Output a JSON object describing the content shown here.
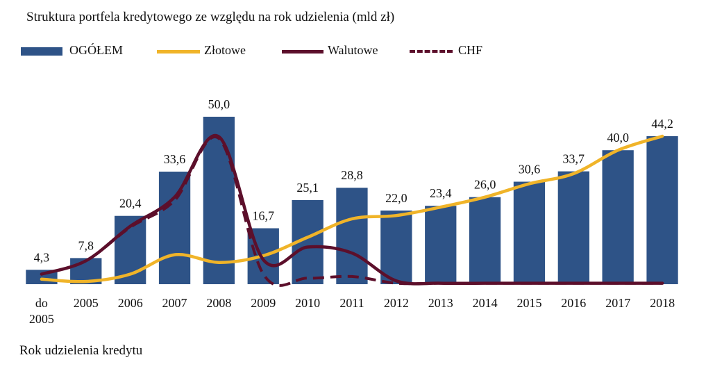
{
  "chart_data": {
    "type": "bar",
    "title": "Struktura portfela kredytowego ze względu na rok udzielenia  (mld zł)",
    "xlabel": "Rok udzielenia kredytu",
    "ylabel": "",
    "categories": [
      "do 2005",
      "2005",
      "2006",
      "2007",
      "2008",
      "2009",
      "2010",
      "2011",
      "2012",
      "2013",
      "2014",
      "2015",
      "2016",
      "2017",
      "2018"
    ],
    "category_lines": [
      [
        "do",
        "2005"
      ],
      [
        "2005"
      ],
      [
        "2006"
      ],
      [
        "2007"
      ],
      [
        "2008"
      ],
      [
        "2009"
      ],
      [
        "2010"
      ],
      [
        "2011"
      ],
      [
        "2012"
      ],
      [
        "2013"
      ],
      [
        "2014"
      ],
      [
        "2015"
      ],
      [
        "2016"
      ],
      [
        "2017"
      ],
      [
        "2018"
      ]
    ],
    "ylim": [
      0,
      55
    ],
    "grid": false,
    "legend_position": "top-left",
    "series": [
      {
        "name": "OGÓŁEM",
        "kind": "bar",
        "color": "#2e5387",
        "values": [
          4.3,
          7.8,
          20.4,
          33.6,
          50.0,
          16.7,
          25.1,
          28.8,
          22.0,
          23.4,
          26.0,
          30.6,
          33.7,
          40.0,
          44.2
        ],
        "data_labels": [
          "4,3",
          "7,8",
          "20,4",
          "33,6",
          "50,0",
          "16,7",
          "25,1",
          "28,8",
          "22,0",
          "23,4",
          "26,0",
          "30,6",
          "33,7",
          "40,0",
          "44,2"
        ]
      },
      {
        "name": "Złotowe",
        "kind": "line",
        "color": "#f0b429",
        "dash": "solid",
        "values": [
          1.5,
          0.8,
          3.0,
          8.8,
          6.5,
          8.5,
          14.0,
          19.5,
          20.5,
          23.0,
          26.0,
          30.0,
          33.0,
          40.0,
          44.2
        ]
      },
      {
        "name": "Walutowe",
        "kind": "line",
        "color": "#5c0f2b",
        "dash": "solid",
        "values": [
          3.0,
          7.0,
          17.3,
          26.0,
          44.0,
          7.3,
          11.1,
          9.3,
          1.0,
          0.3,
          0.3,
          0.3,
          0.3,
          0.3,
          0.3
        ]
      },
      {
        "name": "CHF",
        "kind": "line",
        "color": "#5c0f2b",
        "dash": "dashed",
        "values": [
          3.0,
          7.0,
          17.0,
          25.0,
          43.5,
          3.0,
          1.8,
          2.3,
          0.3,
          0.3,
          0.3,
          0.3,
          0.3,
          0.3,
          0.3
        ]
      }
    ]
  }
}
